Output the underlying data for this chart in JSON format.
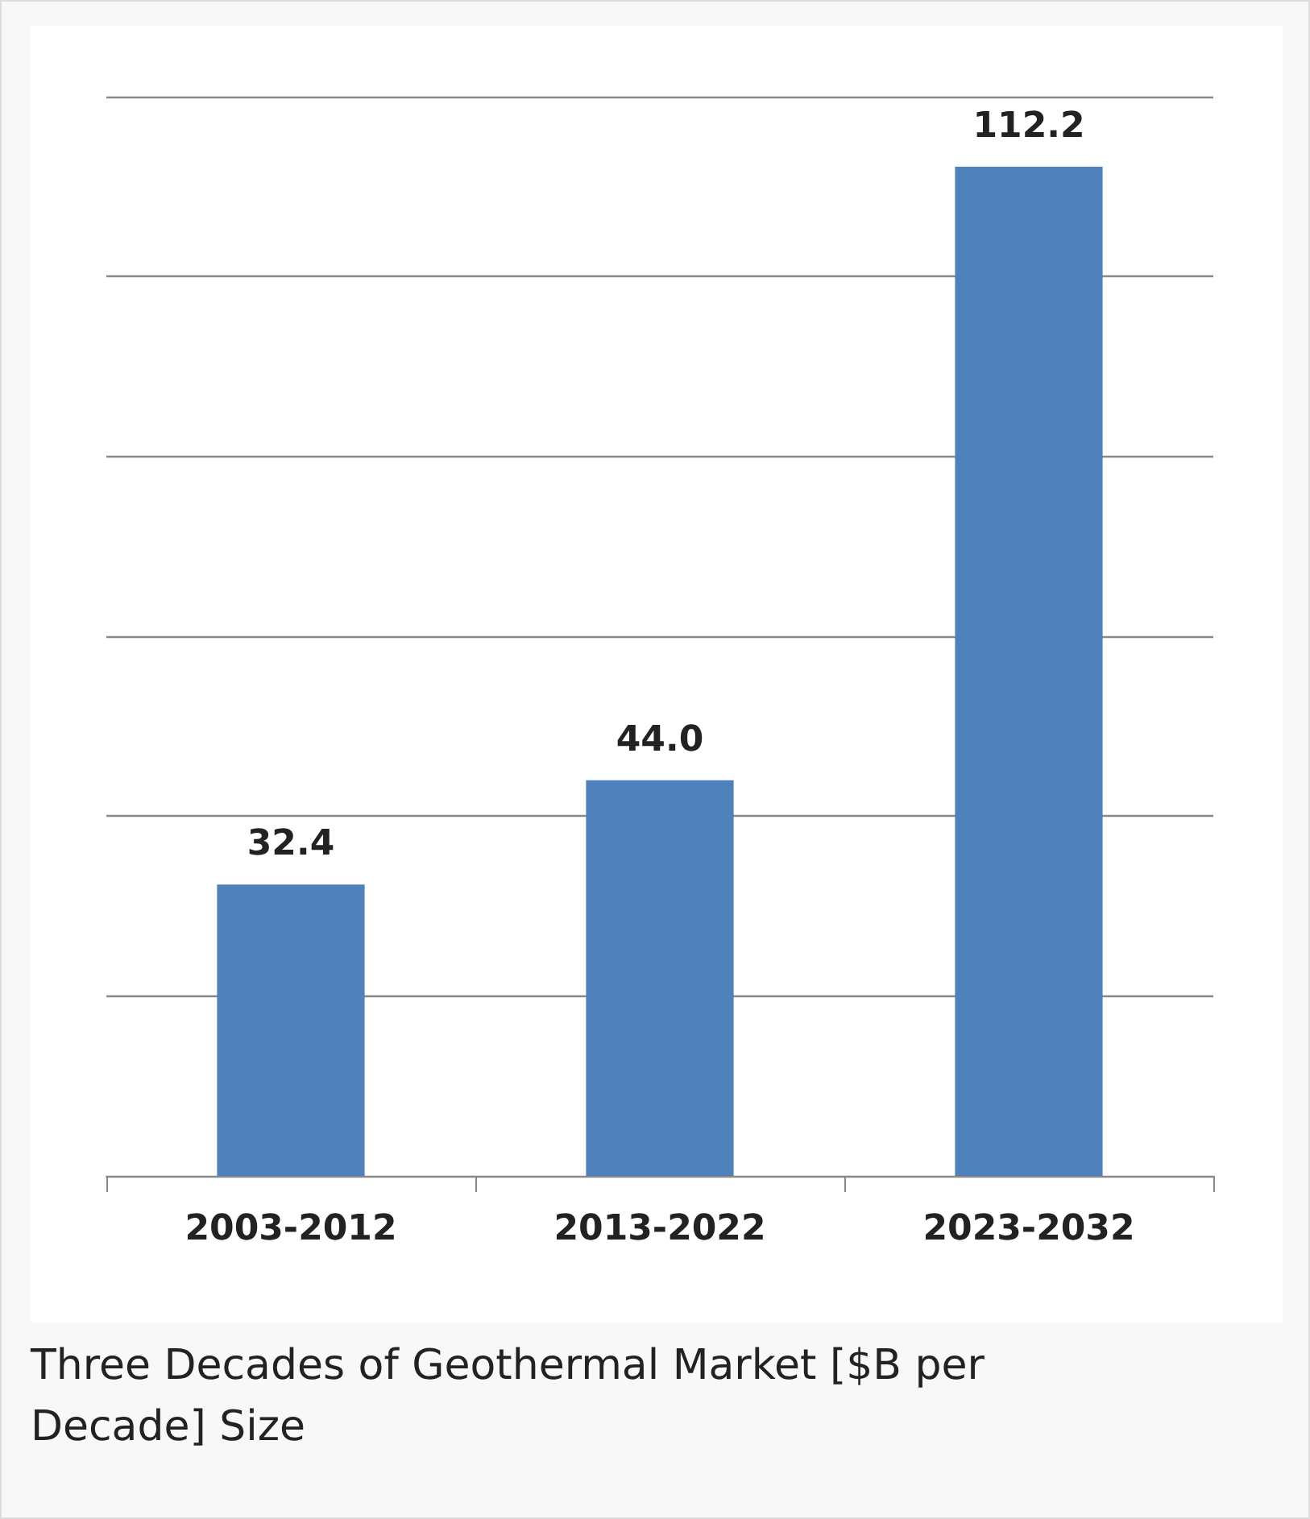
{
  "chart_data": {
    "type": "bar",
    "categories": [
      "2003-2012",
      "2013-2022",
      "2023-2032"
    ],
    "values": [
      32.4,
      44.0,
      112.2
    ],
    "color": "#4f81bd",
    "data_labels": true,
    "value_labels": [
      "32.4",
      "44.0",
      "112.2"
    ],
    "ylim": [
      0,
      120
    ],
    "yticks": [
      {
        "value": 0,
        "label": null
      },
      {
        "value": 20,
        "label": null
      },
      {
        "value": 40,
        "label": null
      },
      {
        "value": 60,
        "label": null
      },
      {
        "value": 80,
        "label": null
      },
      {
        "value": 100,
        "label": null
      },
      {
        "value": 120,
        "label": null
      }
    ],
    "grid": "y",
    "tick_labels": "x",
    "annotations": [
      "Three Decades of Geothermal Market [$B per Decade] Size"
    ]
  }
}
